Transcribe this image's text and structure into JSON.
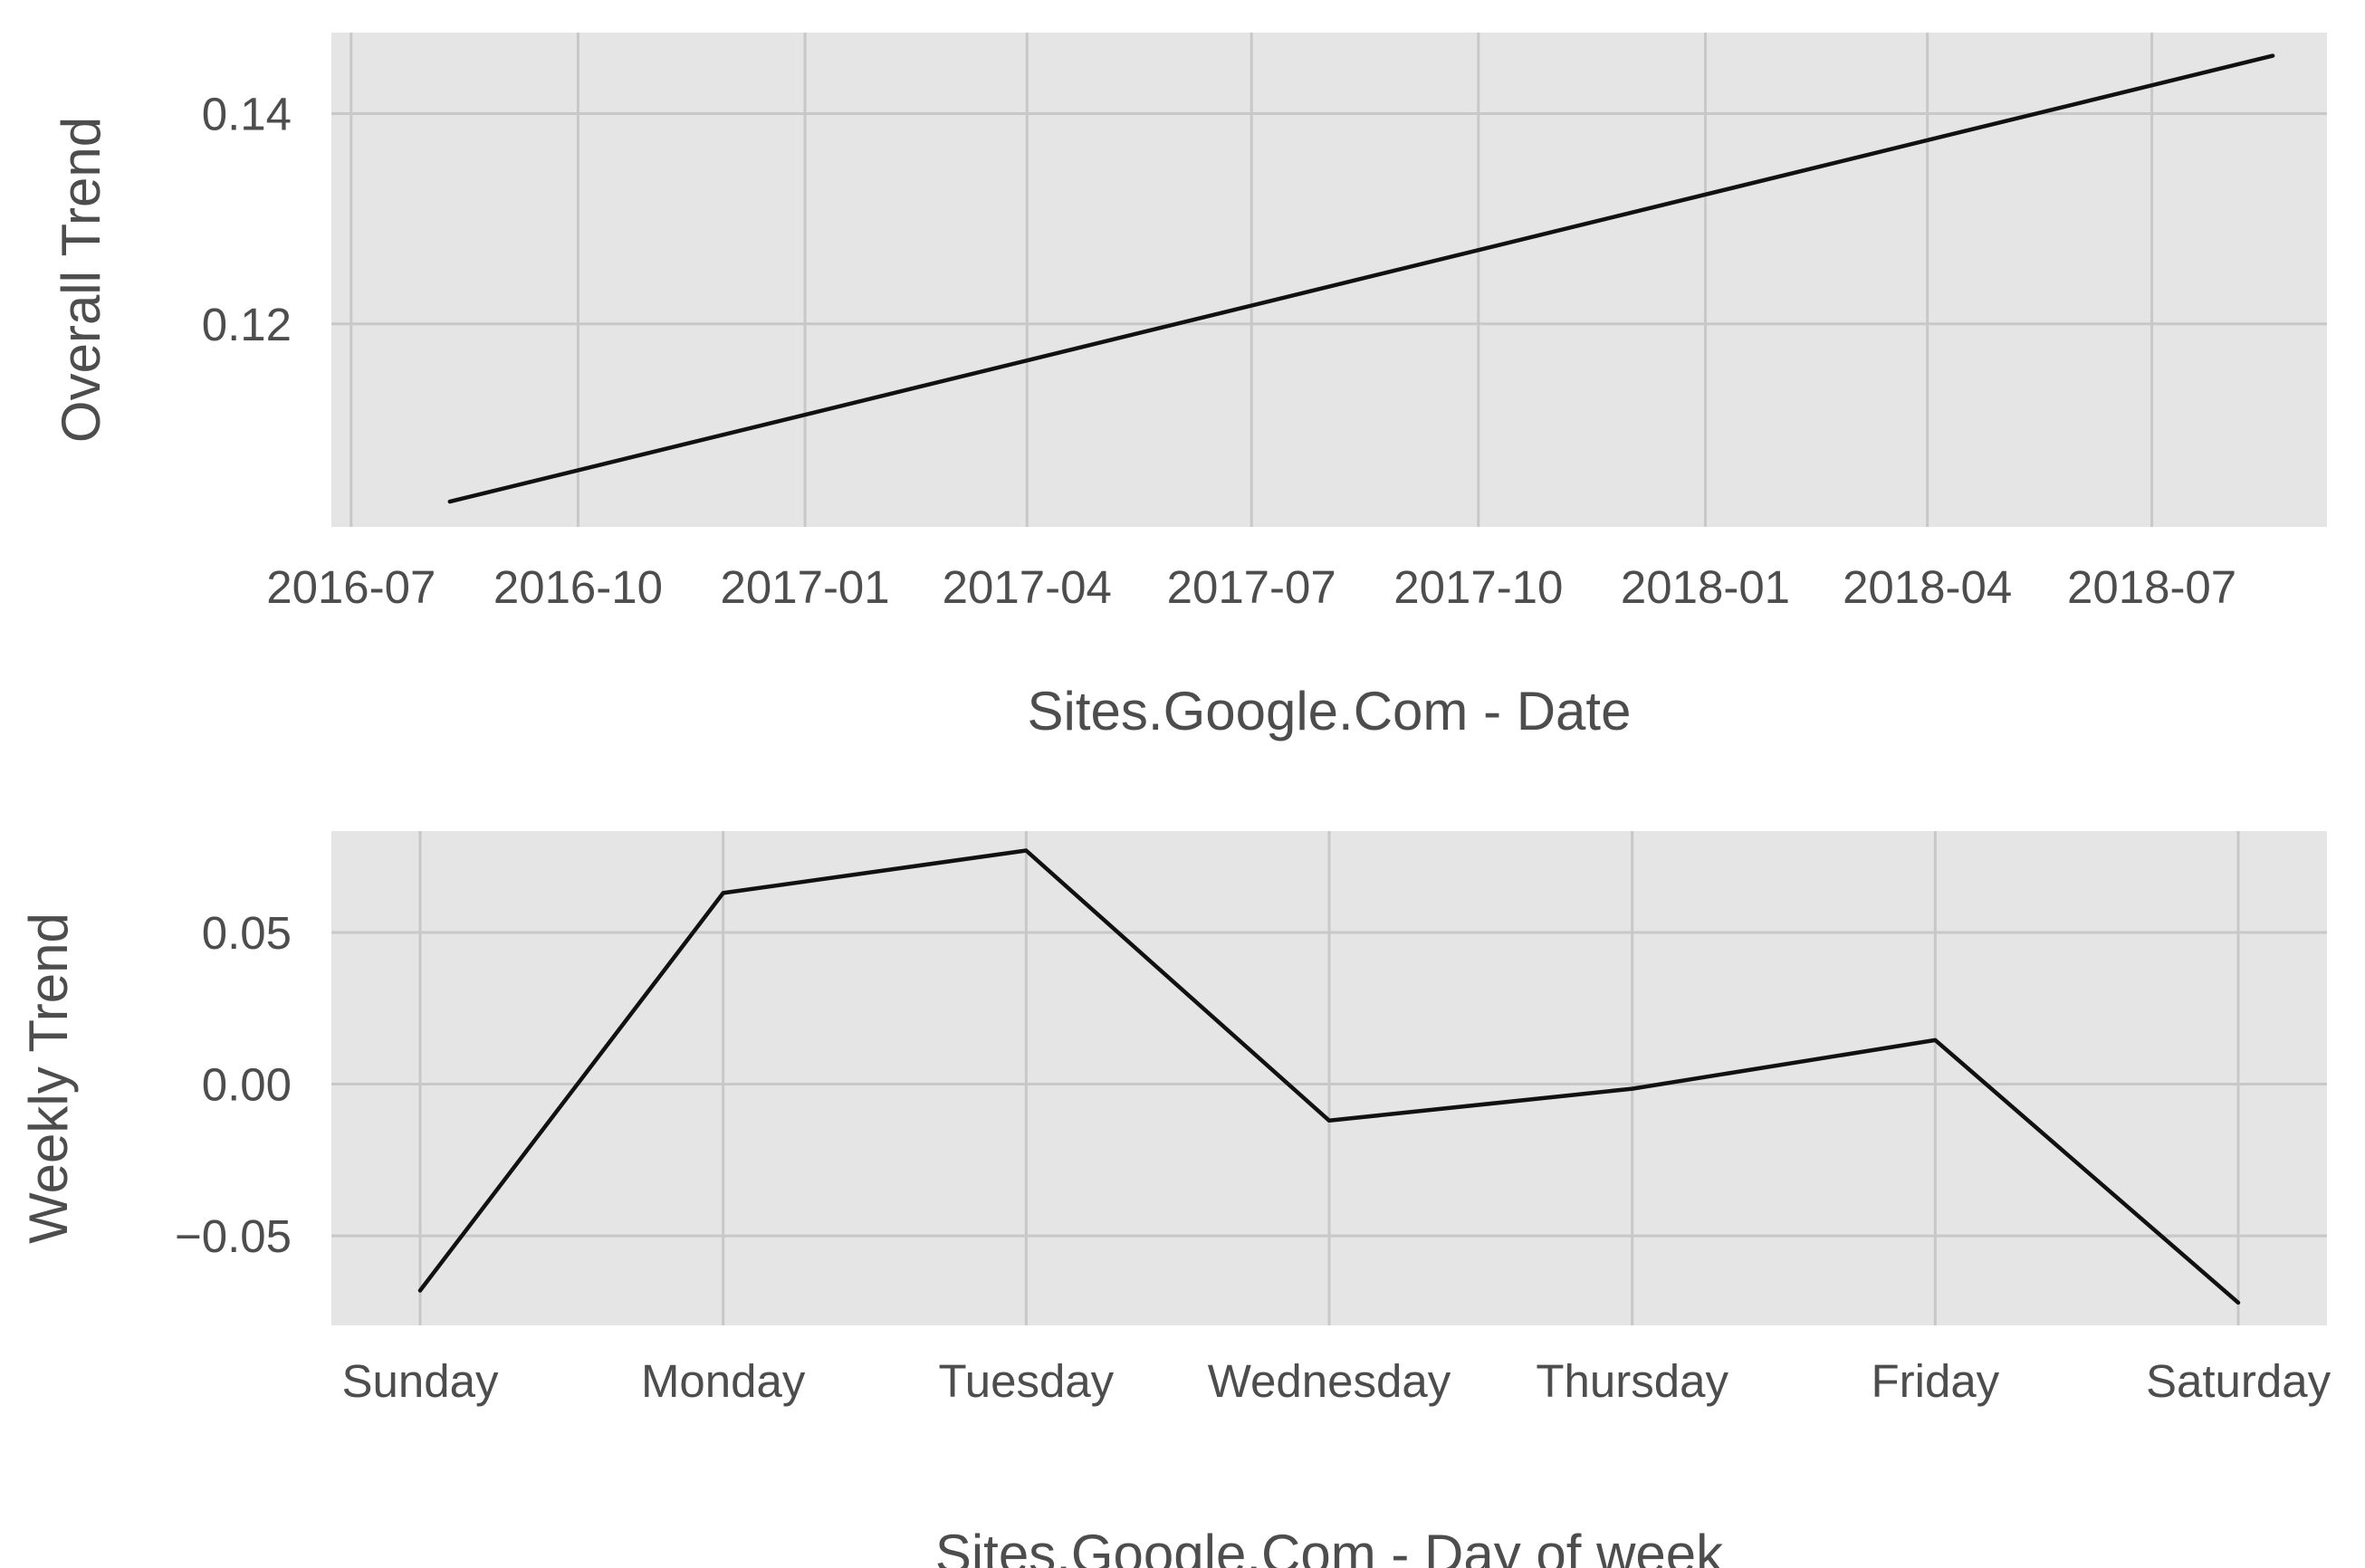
{
  "chart_data": [
    {
      "type": "line",
      "xlabel": "Sites.Google.Com - Date",
      "ylabel": "Overall Trend",
      "x_tick_labels": [
        "2016-07",
        "2016-10",
        "2017-01",
        "2017-04",
        "2017-07",
        "2017-10",
        "2018-01",
        "2018-04",
        "2018-07"
      ],
      "x_ticks": [
        "2016-07-01",
        "2016-10-01",
        "2017-01-01",
        "2017-04-01",
        "2017-07-01",
        "2017-10-01",
        "2018-01-01",
        "2018-04-01",
        "2018-07-01"
      ],
      "y_ticks": [
        0.12,
        0.14
      ],
      "y_tick_labels": [
        "0.12",
        "0.14"
      ],
      "xlim": [
        "2016-06-23",
        "2018-09-10"
      ],
      "ylim": [
        0.1007,
        0.1477
      ],
      "grid": true,
      "series": [
        {
          "x": [
            "2016-08-10",
            "2018-08-19"
          ],
          "y": [
            0.1031,
            0.1455
          ]
        }
      ]
    },
    {
      "type": "line",
      "xlabel": "Sites.Google.Com - Day of week",
      "ylabel": "Weekly Trend",
      "categories": [
        "Sunday",
        "Monday",
        "Tuesday",
        "Wednesday",
        "Thursday",
        "Friday",
        "Saturday"
      ],
      "y_ticks": [
        -0.05,
        0.0,
        0.05
      ],
      "y_tick_labels": [
        "−0.05",
        "0.00",
        "0.05"
      ],
      "ylim": [
        -0.0795,
        0.0834
      ],
      "grid": true,
      "series": [
        {
          "values": [
            -0.068,
            0.063,
            0.077,
            -0.012,
            -0.0015,
            0.0145,
            -0.072
          ]
        }
      ]
    }
  ]
}
